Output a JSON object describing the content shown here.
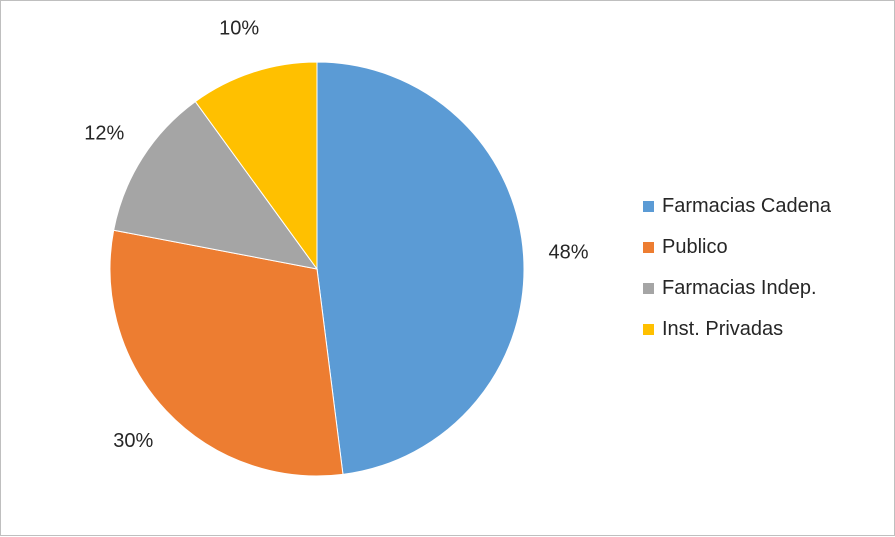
{
  "chart_data": {
    "type": "pie",
    "slices": [
      {
        "label": "Farmacias Cadena",
        "value": 48,
        "value_label": "48%",
        "color": "#5b9bd5"
      },
      {
        "label": "Publico",
        "value": 30,
        "value_label": "30%",
        "color": "#ed7d31"
      },
      {
        "label": "Farmacias Indep.",
        "value": 12,
        "value_label": "12%",
        "color": "#a5a5a5"
      },
      {
        "label": "Inst. Privadas",
        "value": 10,
        "value_label": "10%",
        "color": "#ffc000"
      }
    ],
    "start_angle_deg": 0,
    "direction": "clockwise",
    "legend_position": "right",
    "data_labels": "outside"
  }
}
